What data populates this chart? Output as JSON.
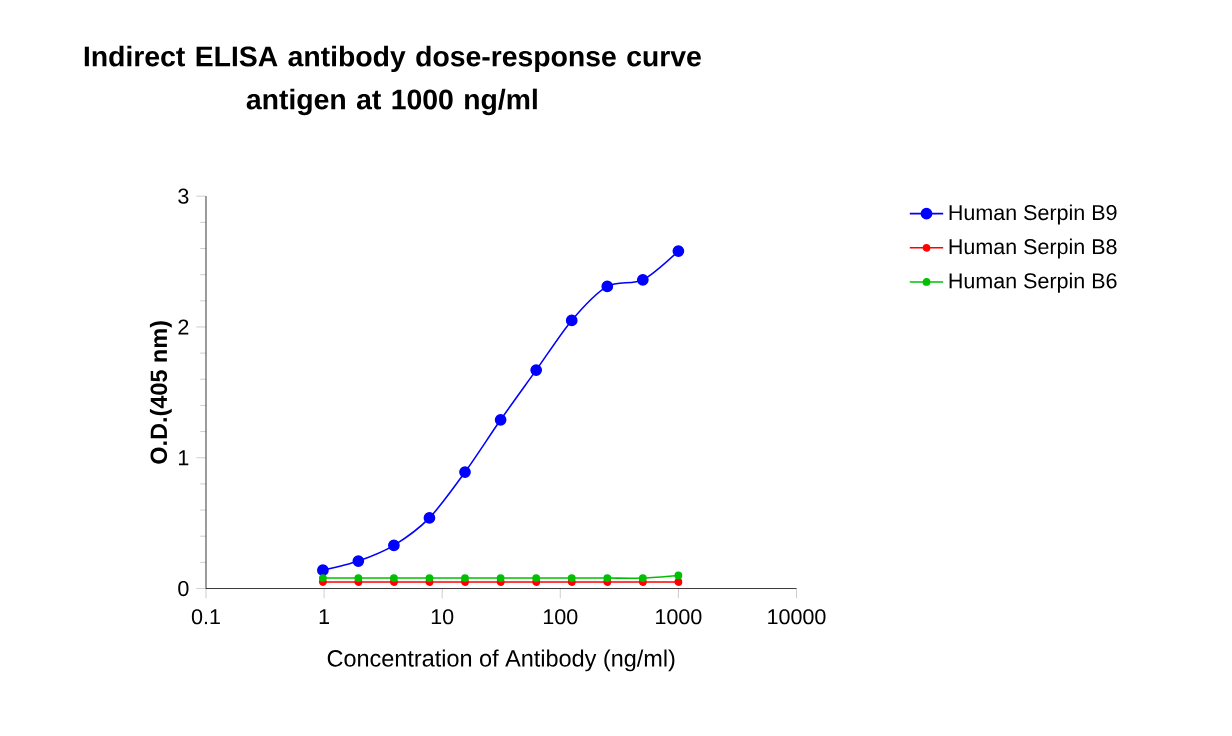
{
  "chart_data": {
    "type": "line",
    "title": "Indirect ELISA antibody dose-response curve\nantigen at 1000 ng/ml",
    "xlabel": "Concentration of Antibody (ng/ml)",
    "ylabel": "O.D.(405 nm)",
    "log": "x",
    "xlim": [
      0.1,
      10000
    ],
    "xticks": [
      0.1,
      1,
      10,
      100,
      1000,
      10000
    ],
    "ylim": [
      0,
      3
    ],
    "yticks": [
      0,
      1,
      2,
      3
    ],
    "grid": false,
    "legend": "right",
    "marker": "circle",
    "line_style": "solid",
    "x": [
      0.977,
      1.95,
      3.9,
      7.8,
      15.6,
      31.25,
      62.5,
      125,
      250,
      500,
      1000
    ],
    "series": [
      {
        "name": "Human Serpin B9",
        "color": "#0000ff",
        "values": [
          0.14,
          0.21,
          0.33,
          0.54,
          0.89,
          1.29,
          1.67,
          2.05,
          2.31,
          2.36,
          2.58
        ]
      },
      {
        "name": "Human Serpin B8",
        "color": "#ff0000",
        "values": [
          0.05,
          0.05,
          0.05,
          0.05,
          0.05,
          0.05,
          0.05,
          0.05,
          0.05,
          0.05,
          0.05
        ]
      },
      {
        "name": "Human Serpin B6",
        "color": "#00c000",
        "values": [
          0.08,
          0.08,
          0.08,
          0.08,
          0.08,
          0.08,
          0.08,
          0.08,
          0.08,
          0.08,
          0.1
        ]
      }
    ]
  }
}
